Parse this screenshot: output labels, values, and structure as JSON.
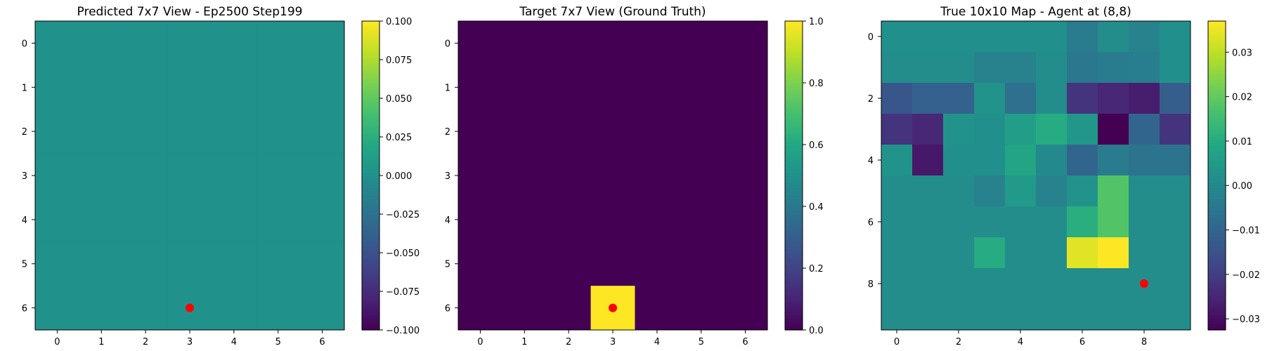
{
  "chart_data": [
    {
      "type": "heatmap",
      "title": "Predicted 7x7 View - Ep2500 Step199",
      "rows": 7,
      "cols": 7,
      "values": [
        [
          0,
          0,
          0,
          0,
          0,
          0,
          0
        ],
        [
          0,
          0,
          0,
          0,
          0,
          0,
          0
        ],
        [
          0,
          0,
          0,
          0,
          0,
          0,
          0
        ],
        [
          0,
          0,
          0,
          0,
          0,
          0,
          0
        ],
        [
          0,
          0,
          0,
          0,
          0,
          0,
          0
        ],
        [
          0,
          0,
          0,
          0,
          0,
          0,
          0
        ],
        [
          0,
          0,
          0,
          0,
          0,
          0,
          0
        ]
      ],
      "vmin": -0.1,
      "vmax": 0.1,
      "colormap": "viridis",
      "x_ticks": [
        "0",
        "1",
        "2",
        "3",
        "4",
        "5",
        "6"
      ],
      "y_ticks": [
        "0",
        "1",
        "2",
        "3",
        "4",
        "5",
        "6"
      ],
      "colorbar_ticks": [
        "−0.100",
        "−0.075",
        "−0.050",
        "−0.025",
        "0.000",
        "0.025",
        "0.050",
        "0.075",
        "0.100"
      ],
      "colorbar_values": [
        -0.1,
        -0.075,
        -0.05,
        -0.025,
        0,
        0.025,
        0.05,
        0.075,
        0.1
      ],
      "marker": {
        "x": 3,
        "y": 6,
        "color": "#ff0000"
      }
    },
    {
      "type": "heatmap",
      "title": "Target 7x7 View (Ground Truth)",
      "rows": 7,
      "cols": 7,
      "values": [
        [
          0,
          0,
          0,
          0,
          0,
          0,
          0
        ],
        [
          0,
          0,
          0,
          0,
          0,
          0,
          0
        ],
        [
          0,
          0,
          0,
          0,
          0,
          0,
          0
        ],
        [
          0,
          0,
          0,
          0,
          0,
          0,
          0
        ],
        [
          0,
          0,
          0,
          0,
          0,
          0,
          0
        ],
        [
          0,
          0,
          0,
          0,
          0,
          0,
          0
        ],
        [
          0,
          0,
          0,
          1,
          0,
          0,
          0
        ]
      ],
      "vmin": 0,
      "vmax": 1,
      "colormap": "viridis",
      "x_ticks": [
        "0",
        "1",
        "2",
        "3",
        "4",
        "5",
        "6"
      ],
      "y_ticks": [
        "0",
        "1",
        "2",
        "3",
        "4",
        "5",
        "6"
      ],
      "colorbar_ticks": [
        "0.0",
        "0.2",
        "0.4",
        "0.6",
        "0.8",
        "1.0"
      ],
      "colorbar_values": [
        0,
        0.2,
        0.4,
        0.6,
        0.8,
        1.0
      ],
      "marker": {
        "x": 3,
        "y": 6,
        "color": "#ff0000"
      }
    },
    {
      "type": "heatmap",
      "title": "True 10x10 Map - Agent at (8,8)",
      "rows": 10,
      "cols": 10,
      "values": [
        [
          0.002,
          0.002,
          0.002,
          0.002,
          0.002,
          0.002,
          -0.004,
          0.001,
          -0.002,
          0.002
        ],
        [
          0.001,
          0.001,
          0.001,
          -0.002,
          -0.002,
          0.001,
          -0.005,
          -0.004,
          -0.003,
          0.002
        ],
        [
          -0.014,
          -0.011,
          -0.011,
          0.003,
          -0.007,
          0.001,
          -0.022,
          -0.025,
          -0.027,
          -0.012
        ],
        [
          -0.022,
          -0.025,
          0.003,
          0.002,
          0.006,
          0.01,
          0.004,
          -0.033,
          -0.01,
          -0.022
        ],
        [
          0.003,
          -0.028,
          0.002,
          0.002,
          0.008,
          0.0,
          -0.01,
          -0.004,
          -0.006,
          -0.006
        ],
        [
          0.001,
          0.001,
          0.001,
          -0.002,
          0.005,
          -0.002,
          0.003,
          0.018,
          0.001,
          0.001
        ],
        [
          0.001,
          0.001,
          0.001,
          0.001,
          0.001,
          0.001,
          0.011,
          0.018,
          0.001,
          0.001
        ],
        [
          0.001,
          0.001,
          0.001,
          0.01,
          0.001,
          0.001,
          0.034,
          0.037,
          0.001,
          0.001
        ],
        [
          0.001,
          0.001,
          0.001,
          0.001,
          0.001,
          0.001,
          0.001,
          0.001,
          0.001,
          0.001
        ],
        [
          0.001,
          0.001,
          0.001,
          0.001,
          0.001,
          0.001,
          0.001,
          0.001,
          0.001,
          0.001
        ]
      ],
      "vmin": -0.0325,
      "vmax": 0.037,
      "colormap": "viridis",
      "x_ticks": [
        "0",
        "2",
        "4",
        "6",
        "8"
      ],
      "x_tick_values": [
        0,
        2,
        4,
        6,
        8
      ],
      "y_ticks": [
        "0",
        "2",
        "4",
        "6",
        "8"
      ],
      "y_tick_values": [
        0,
        2,
        4,
        6,
        8
      ],
      "colorbar_ticks": [
        "−0.03",
        "−0.02",
        "−0.01",
        "0.00",
        "0.01",
        "0.02",
        "0.03"
      ],
      "colorbar_values": [
        -0.03,
        -0.02,
        -0.01,
        0,
        0.01,
        0.02,
        0.03
      ],
      "marker": {
        "x": 8,
        "y": 8,
        "color": "#ff0000"
      }
    }
  ]
}
